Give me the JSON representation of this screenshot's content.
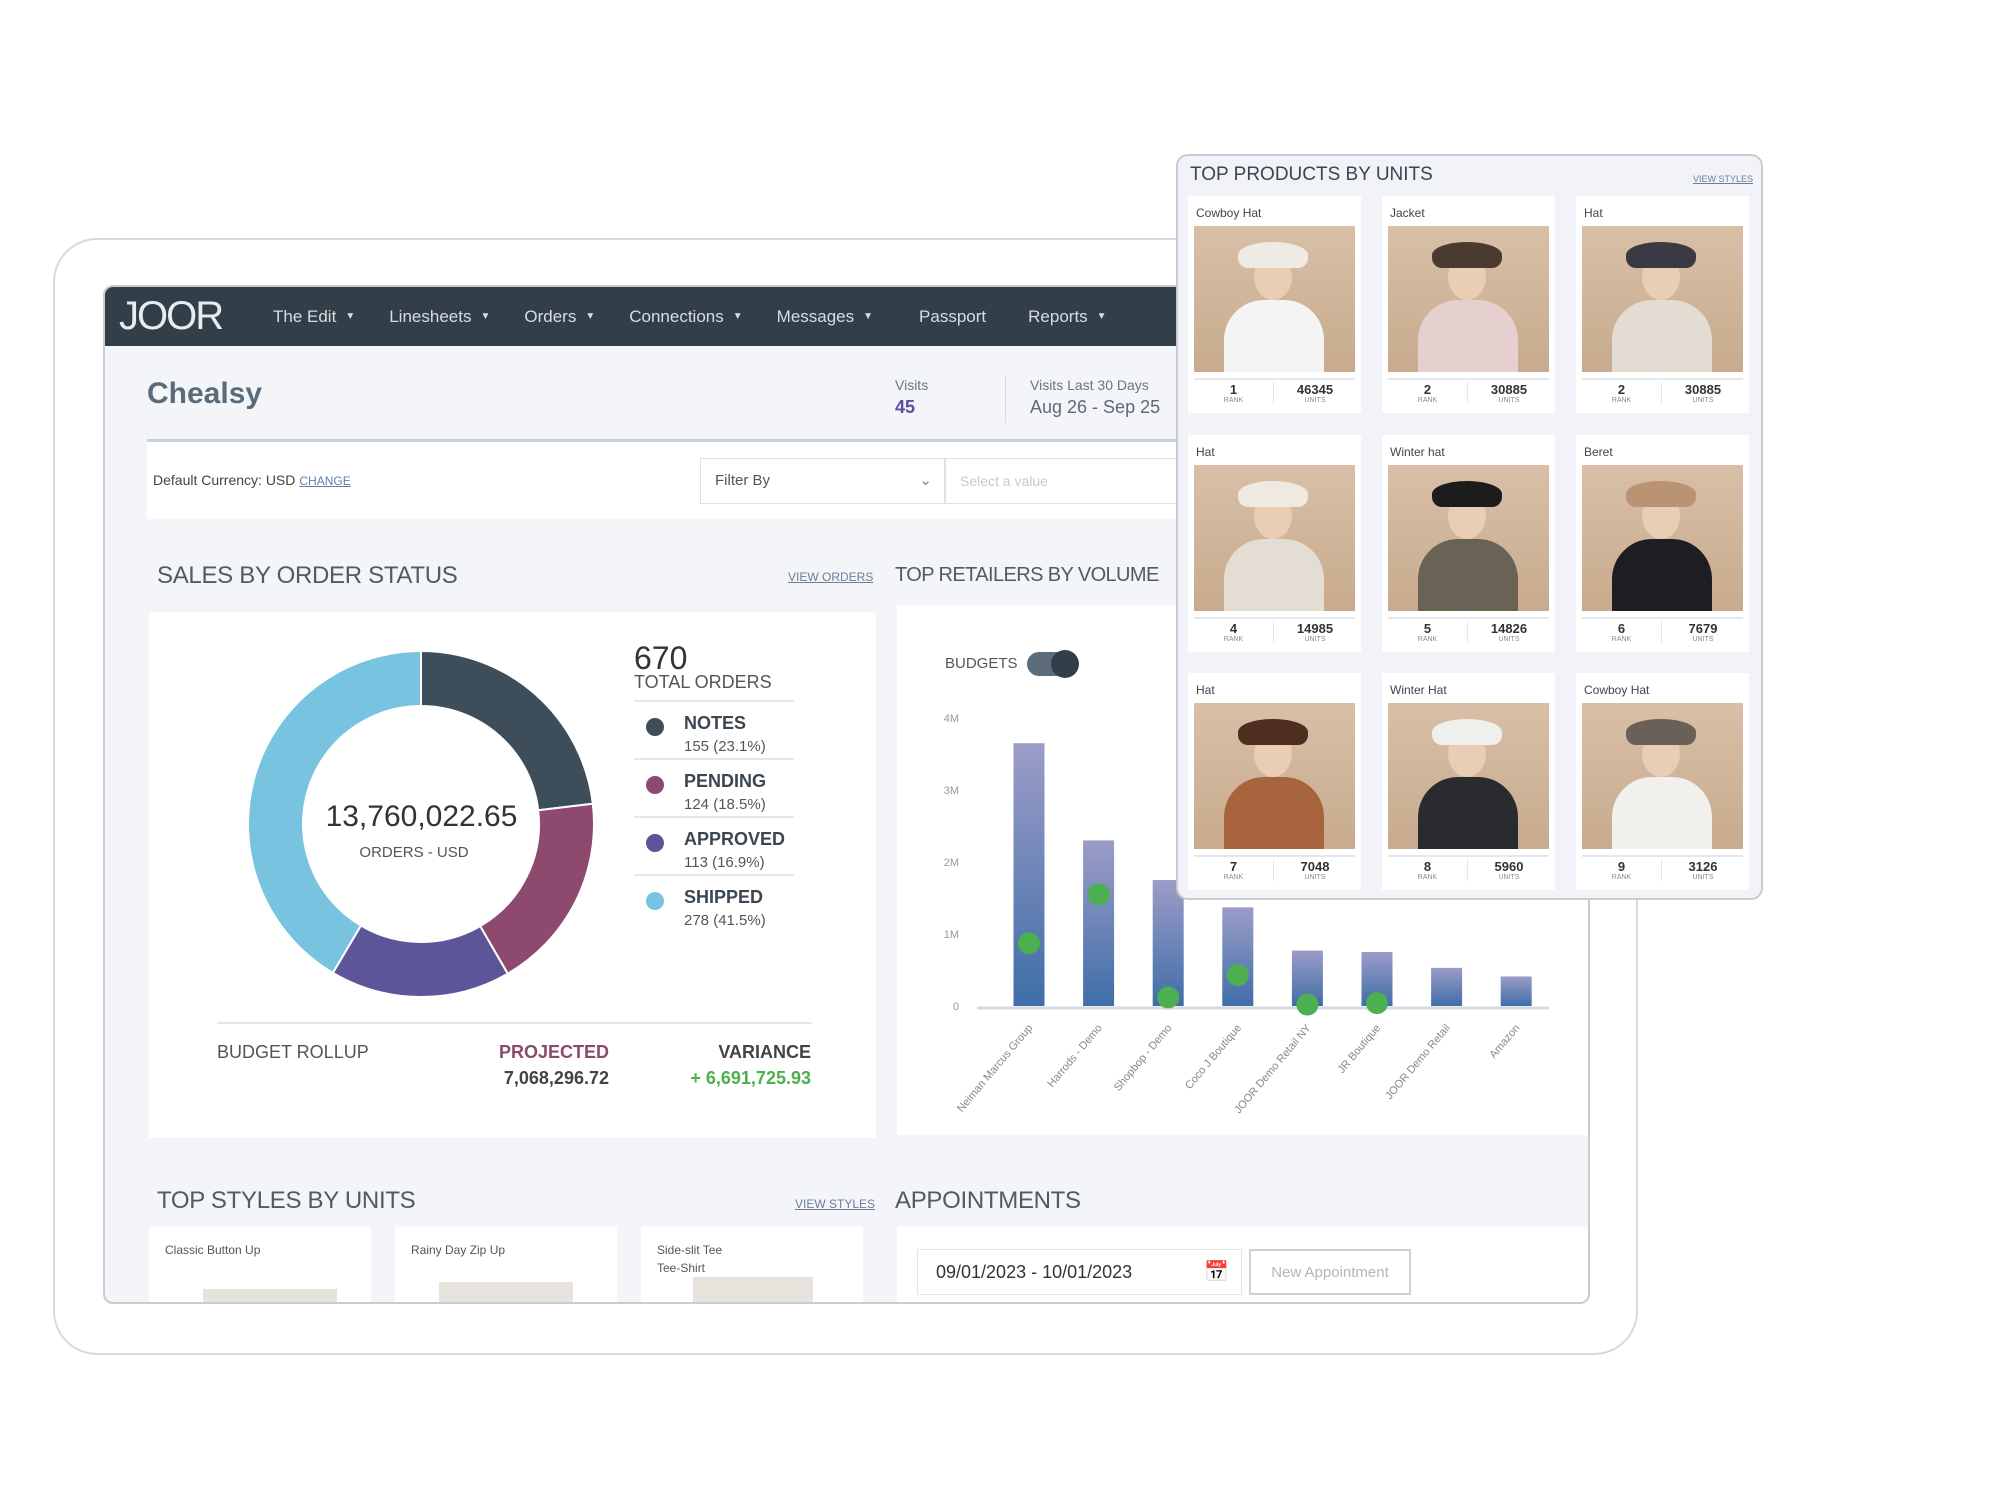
{
  "nav": {
    "logo": "JOOR",
    "items": [
      {
        "label": "The Edit",
        "caret": true
      },
      {
        "label": "Linesheets",
        "caret": true
      },
      {
        "label": "Orders",
        "caret": true
      },
      {
        "label": "Connections",
        "caret": true
      },
      {
        "label": "Messages",
        "caret": true
      },
      {
        "label": "Passport",
        "caret": false
      },
      {
        "label": "Reports",
        "caret": true
      }
    ]
  },
  "header": {
    "title": "Chealsy",
    "visits_label": "Visits",
    "visits_value": "45",
    "visits30_label": "Visits Last 30 Days",
    "visits30_value": "Aug 26 - Sep 25"
  },
  "filters": {
    "currency": "Default Currency: USD",
    "change": "CHANGE",
    "filter_by": "Filter By",
    "value_placeholder": "Select a value"
  },
  "sales": {
    "title": "SALES BY ORDER STATUS",
    "link": "VIEW ORDERS",
    "total_value": "13,760,022.65",
    "total_caption": "ORDERS - USD",
    "orders_count": "670",
    "orders_caption": "TOTAL ORDERS",
    "budget_label": "BUDGET ROLLUP",
    "projected_label": "PROJECTED",
    "projected_value": "7,068,296.72",
    "variance_label": "VARIANCE",
    "variance_value": "+ 6,691,725.93",
    "colors": {
      "projected": "#8b4a6c",
      "variance": "#4caf50"
    }
  },
  "chart_data": [
    {
      "type": "pie",
      "variant": "donut",
      "title": "SALES BY ORDER STATUS",
      "slices": [
        {
          "name": "NOTES",
          "count": 155,
          "percent": 23.1,
          "label": "155 (23.1%)",
          "color": "#3d4d5a"
        },
        {
          "name": "PENDING",
          "count": 124,
          "percent": 18.5,
          "label": "124 (18.5%)",
          "color": "#8e4a6e"
        },
        {
          "name": "APPROVED",
          "count": 113,
          "percent": 16.9,
          "label": "113 (16.9%)",
          "color": "#5c559a"
        },
        {
          "name": "SHIPPED",
          "count": 278,
          "percent": 41.5,
          "label": "278 (41.5%)",
          "color": "#78c3e0"
        }
      ]
    },
    {
      "type": "bar",
      "title": "TOP RETAILERS BY VOLUME",
      "toggle_label": "BUDGETS",
      "toggle_on": true,
      "categories": [
        "Neiman Marcus Group",
        "Harrods - Demo",
        "Shopbop - Demo",
        "Coco J Boutique",
        "JOOR Demo Retail NY",
        "JR Boutique",
        "JOOR Demo Retail",
        "Amazon"
      ],
      "values": [
        3650000,
        2300000,
        1750000,
        1370000,
        770000,
        750000,
        530000,
        410000
      ],
      "budgets": [
        870000,
        1550000,
        120000,
        430000,
        20000,
        40000,
        null,
        null
      ],
      "yticks": [
        "0",
        "1M",
        "2M",
        "3M",
        "4M"
      ],
      "ylim": [
        0,
        4000000
      ],
      "bar_color_top": "#9c9cc8",
      "bar_color_bottom": "#3f6ea8",
      "budget_color": "#4caf50"
    }
  ],
  "retailers": {
    "title": "TOP RETAILERS BY VOLU"
  },
  "products": {
    "title": "TOP PRODUCTS BY UNITS",
    "link": "VIEW STYLES",
    "rank_label": "RANK",
    "units_label": "UNITS",
    "items": [
      {
        "name": "Cowboy Hat",
        "rank": "1",
        "units": "46345",
        "hat": "#eeeae4",
        "top": "#f4f4f4"
      },
      {
        "name": "Jacket",
        "rank": "2",
        "units": "30885",
        "hat": "#4a3a30",
        "top": "#e6cfcf"
      },
      {
        "name": "Hat",
        "rank": "2",
        "units": "30885",
        "hat": "#3a3a45",
        "top": "#e2dcd2"
      },
      {
        "name": "Hat",
        "rank": "4",
        "units": "14985",
        "hat": "#efe9e1",
        "top": "#e4ddd3"
      },
      {
        "name": "Winter hat",
        "rank": "5",
        "units": "14826",
        "hat": "#1c1c1c",
        "top": "#6b6256"
      },
      {
        "name": "Beret",
        "rank": "6",
        "units": "7679",
        "hat": "#b99372",
        "top": "#1e1e22"
      },
      {
        "name": "Hat",
        "rank": "7",
        "units": "7048",
        "hat": "#4e2e1e",
        "top": "#a8653d"
      },
      {
        "name": "Winter Hat",
        "rank": "8",
        "units": "5960",
        "hat": "#efefec",
        "top": "#2a2b2e"
      },
      {
        "name": "Cowboy Hat",
        "rank": "9",
        "units": "3126",
        "hat": "#6b6058",
        "top": "#f2f0ec"
      }
    ]
  },
  "styles": {
    "title": "TOP STYLES BY UNITS",
    "link": "VIEW STYLES",
    "items": [
      {
        "name": "Classic Button Up"
      },
      {
        "name": "Rainy Day Zip Up"
      },
      {
        "name": "Side-slit Tee\nTee-Shirt"
      }
    ]
  },
  "appointments": {
    "title": "APPOINTMENTS",
    "date_range": "09/01/2023 - 10/01/2023",
    "new_button": "New Appointment"
  }
}
